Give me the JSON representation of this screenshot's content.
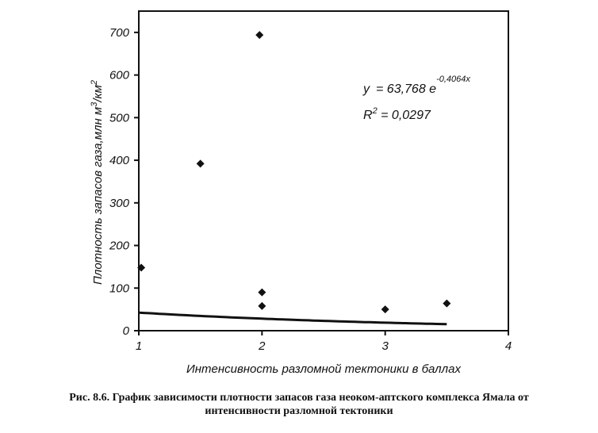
{
  "chart_data": {
    "type": "scatter",
    "title": "",
    "xlabel": "Интенсивность разломной тектоники в баллах",
    "ylabel": "Плотность запасов газа,млн  м",
    "ylabel_units": "3/км2",
    "ylabel_sup1": "3",
    "ylabel_mid": "/км",
    "ylabel_sup2": "2",
    "xlim": [
      1,
      4
    ],
    "ylim": [
      0,
      750
    ],
    "xticks": [
      1,
      2,
      3,
      4
    ],
    "yticks": [
      0,
      100,
      200,
      300,
      400,
      500,
      600,
      700
    ],
    "grid": false,
    "points": [
      {
        "x": 1.02,
        "y": 148
      },
      {
        "x": 1.5,
        "y": 392
      },
      {
        "x": 1.98,
        "y": 694
      },
      {
        "x": 2.0,
        "y": 90
      },
      {
        "x": 2.0,
        "y": 58
      },
      {
        "x": 3.0,
        "y": 50
      },
      {
        "x": 3.5,
        "y": 64
      }
    ],
    "trendline": {
      "type": "exponential",
      "a": 63.768,
      "b": -0.4064,
      "x_range": [
        1,
        3.5
      ]
    },
    "annotations": {
      "equation_lhs": "y",
      "equation_rhs": "= 63,768 e",
      "equation_exp": "-0,4064x",
      "r2_lhs": "R",
      "r2_sup": "2",
      "r2_rhs": " = 0,0297"
    }
  },
  "caption": {
    "line1": "Рис. 8.6. График зависимости  плотности запасов газа  неоком-аптского комплекса  Ямала от",
    "line2": "интенсивности разломной тектоники"
  }
}
